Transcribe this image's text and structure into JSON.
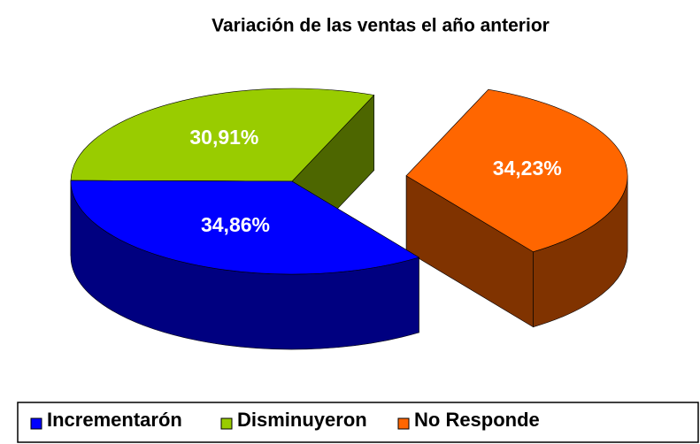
{
  "chart_data": {
    "type": "pie3d",
    "title": "Variación de las  ventas el año anterior",
    "categories": [
      "Incrementarón",
      "Disminuyeron",
      "No Responde"
    ],
    "values": [
      34.86,
      30.91,
      34.23
    ],
    "value_labels": [
      "34,86%",
      "30,91%",
      "34,23%"
    ],
    "colors": [
      "#0000ff",
      "#99cc00",
      "#ff6600"
    ],
    "exploded": "No Responde",
    "legend": "bottom"
  }
}
